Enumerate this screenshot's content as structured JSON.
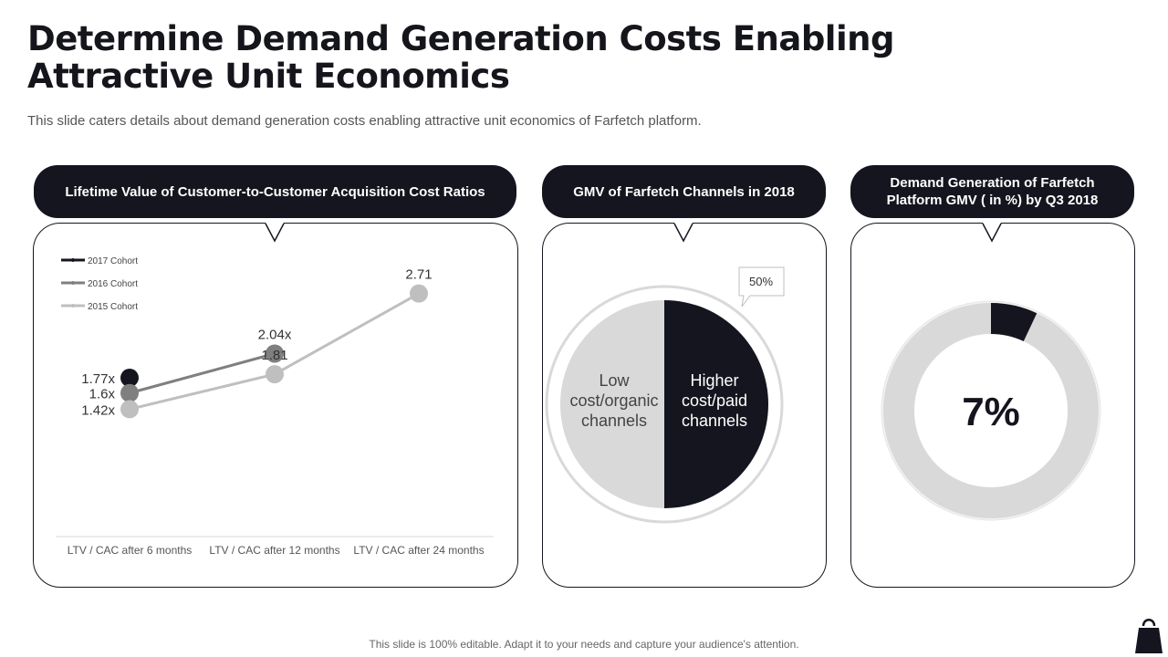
{
  "title": "Determine Demand Generation Costs Enabling Attractive Unit Economics",
  "subtitle": "This slide caters details about demand generation costs enabling attractive unit economics of Farfetch platform.",
  "footer": "This slide is 100% editable. Adapt it to your needs and capture your audience's attention.",
  "panels": {
    "ltv": {
      "header": "Lifetime Value of Customer-to-Customer Acquisition Cost Ratios"
    },
    "gmv": {
      "header": "GMV of Farfetch Channels in 2018"
    },
    "demand": {
      "header": "Demand Generation of Farfetch Platform GMV ( in %) by Q3 2018"
    }
  },
  "colors": {
    "dark": "#15151f",
    "mid": "#7f7f7f",
    "light": "#bfbfbf",
    "pie_light": "#d9d9d9"
  },
  "chart_data": [
    {
      "type": "line",
      "title": "Lifetime Value of Customer-to-Customer Acquisition Cost Ratios",
      "categories": [
        "LTV / CAC after 6 months",
        "LTV / CAC after 12 months",
        "LTV / CAC after 24 months"
      ],
      "legend_position": "top-left",
      "ylim": [
        0,
        3.5
      ],
      "series": [
        {
          "name": "2017 Cohort",
          "values": [
            1.77,
            null,
            null
          ],
          "labels": [
            "1.77x",
            "",
            ""
          ],
          "color": "#15151f"
        },
        {
          "name": "2016 Cohort",
          "values": [
            1.6,
            2.04,
            null
          ],
          "labels": [
            "1.6x",
            "2.04x",
            ""
          ],
          "color": "#7f7f7f"
        },
        {
          "name": "2015 Cohort",
          "values": [
            1.42,
            1.81,
            2.71
          ],
          "labels": [
            "1.42x",
            "1.81",
            "2.71"
          ],
          "color": "#bfbfbf"
        }
      ]
    },
    {
      "type": "pie",
      "title": "GMV of Farfetch Channels in 2018",
      "slices": [
        {
          "label": "Higher cost/paid channels",
          "lines": [
            "Higher",
            "cost/paid",
            "channels"
          ],
          "value": 50,
          "color": "#15151f"
        },
        {
          "label": "Low cost/organic channels",
          "lines": [
            "Low",
            "cost/organic",
            "channels"
          ],
          "value": 50,
          "color": "#d9d9d9"
        }
      ],
      "callout": "50%"
    },
    {
      "type": "pie",
      "title": "Demand Generation of Farfetch Platform GMV ( in %) by Q3 2018",
      "value": 7,
      "center_label": "7%"
    }
  ]
}
